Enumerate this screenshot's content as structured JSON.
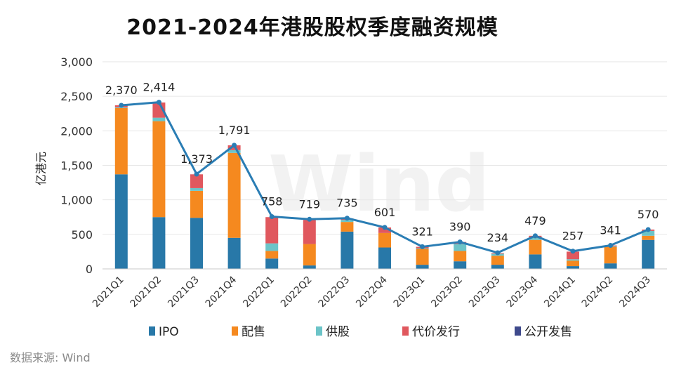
{
  "chart_data": {
    "type": "bar",
    "stacked": true,
    "title": "2021-2024年港股股权季度融资规模",
    "ylabel": "亿港元",
    "xlabel": "",
    "ylim": [
      0,
      3000
    ],
    "yticks": [
      0,
      500,
      1000,
      1500,
      2000,
      2500,
      3000
    ],
    "ytick_labels": [
      "0",
      "500",
      "1,000",
      "1,500",
      "2,000",
      "2,500",
      "3,000"
    ],
    "categories": [
      "2021Q1",
      "2021Q2",
      "2021Q3",
      "2021Q4",
      "2022Q1",
      "2022Q2",
      "2022Q3",
      "2022Q4",
      "2023Q1",
      "2023Q2",
      "2023Q3",
      "2023Q4",
      "2024Q1",
      "2024Q2",
      "2024Q3"
    ],
    "series": [
      {
        "name": "IPO",
        "color": "#2878a8",
        "values": [
          1370,
          750,
          740,
          450,
          150,
          50,
          540,
          310,
          60,
          110,
          60,
          210,
          40,
          80,
          420
        ]
      },
      {
        "name": "配售",
        "color": "#f5891f",
        "values": [
          960,
          1390,
          390,
          1230,
          110,
          310,
          140,
          210,
          230,
          150,
          130,
          210,
          80,
          240,
          60
        ]
      },
      {
        "name": "供股",
        "color": "#6cc4c8",
        "values": [
          10,
          50,
          40,
          40,
          110,
          0,
          30,
          0,
          10,
          100,
          30,
          30,
          20,
          10,
          70
        ]
      },
      {
        "name": "代价发行",
        "color": "#e0585e",
        "values": [
          30,
          220,
          200,
          70,
          380,
          350,
          20,
          80,
          20,
          30,
          10,
          30,
          110,
          10,
          20
        ]
      },
      {
        "name": "公开发售",
        "color": "#3f4a8c",
        "values": [
          0,
          0,
          0,
          0,
          0,
          0,
          0,
          0,
          0,
          0,
          0,
          0,
          0,
          0,
          0
        ]
      }
    ],
    "total": {
      "name": "合计",
      "color": "#2a7db4",
      "values": [
        2370,
        2414,
        1373,
        1791,
        758,
        719,
        735,
        601,
        321,
        390,
        234,
        479,
        257,
        341,
        570
      ],
      "labels": [
        "2,370",
        "2,414",
        "1,373",
        "1,791",
        "758",
        "719",
        "735",
        "601",
        "321",
        "390",
        "234",
        "479",
        "257",
        "341",
        "570"
      ]
    },
    "watermark": "Wind",
    "legend": [
      "IPO",
      "配售",
      "供股",
      "代价发行",
      "公开发售"
    ]
  },
  "source": "数据来源: Wind"
}
